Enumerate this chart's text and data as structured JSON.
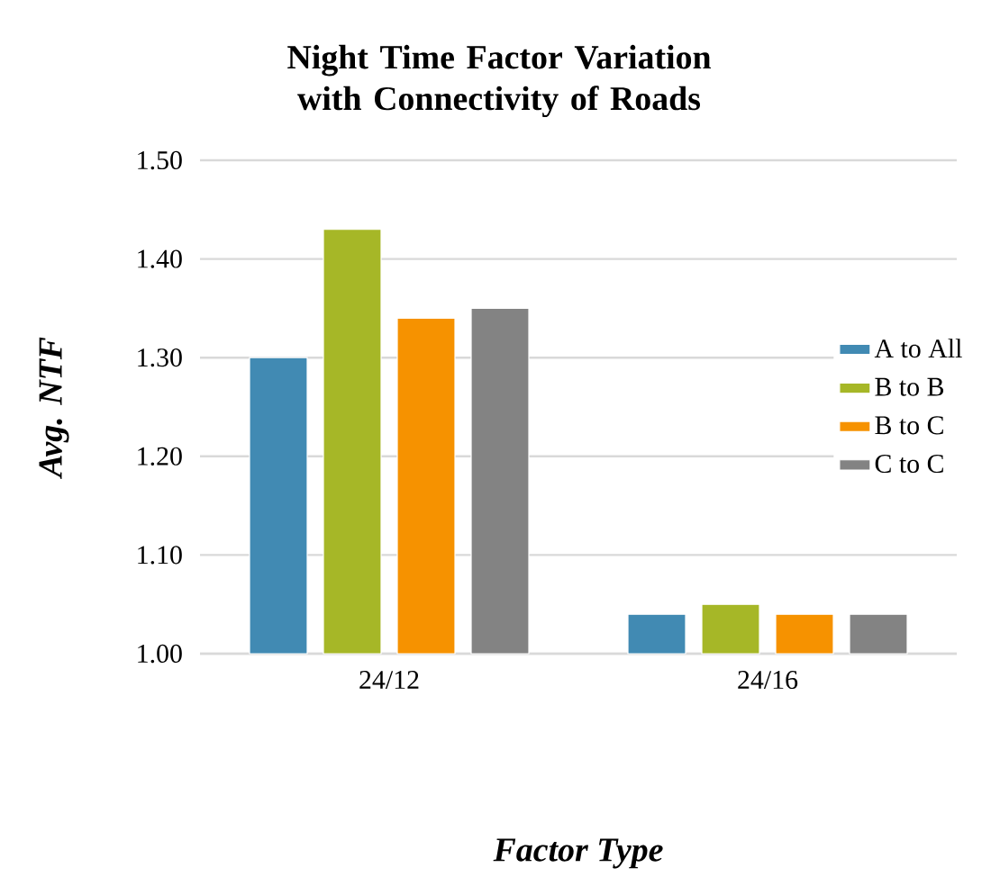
{
  "chart_data": {
    "type": "bar",
    "title": "Night Time Factor Variation with Connectivity of Roads",
    "xlabel": "Factor Type",
    "ylabel": "Avg. NTF",
    "categories": [
      "24/12",
      "24/16"
    ],
    "series": [
      {
        "name": "A to All",
        "color": "#418ab3",
        "values": [
          1.3,
          1.04
        ]
      },
      {
        "name": "B to B",
        "color": "#a6b727",
        "values": [
          1.43,
          1.05
        ]
      },
      {
        "name": "B to C",
        "color": "#f69200",
        "values": [
          1.34,
          1.04
        ]
      },
      {
        "name": "C to C",
        "color": "#838383",
        "values": [
          1.35,
          1.04
        ]
      }
    ],
    "ylim": [
      1.0,
      1.5
    ],
    "yticks": [
      {
        "value": 1.0,
        "label": "1.00"
      },
      {
        "value": 1.1,
        "label": "1.10"
      },
      {
        "value": 1.2,
        "label": "1.20"
      },
      {
        "value": 1.3,
        "label": "1.30"
      },
      {
        "value": 1.4,
        "label": "1.40"
      },
      {
        "value": 1.5,
        "label": "1.50"
      }
    ],
    "grid": "y",
    "legend": "right"
  }
}
